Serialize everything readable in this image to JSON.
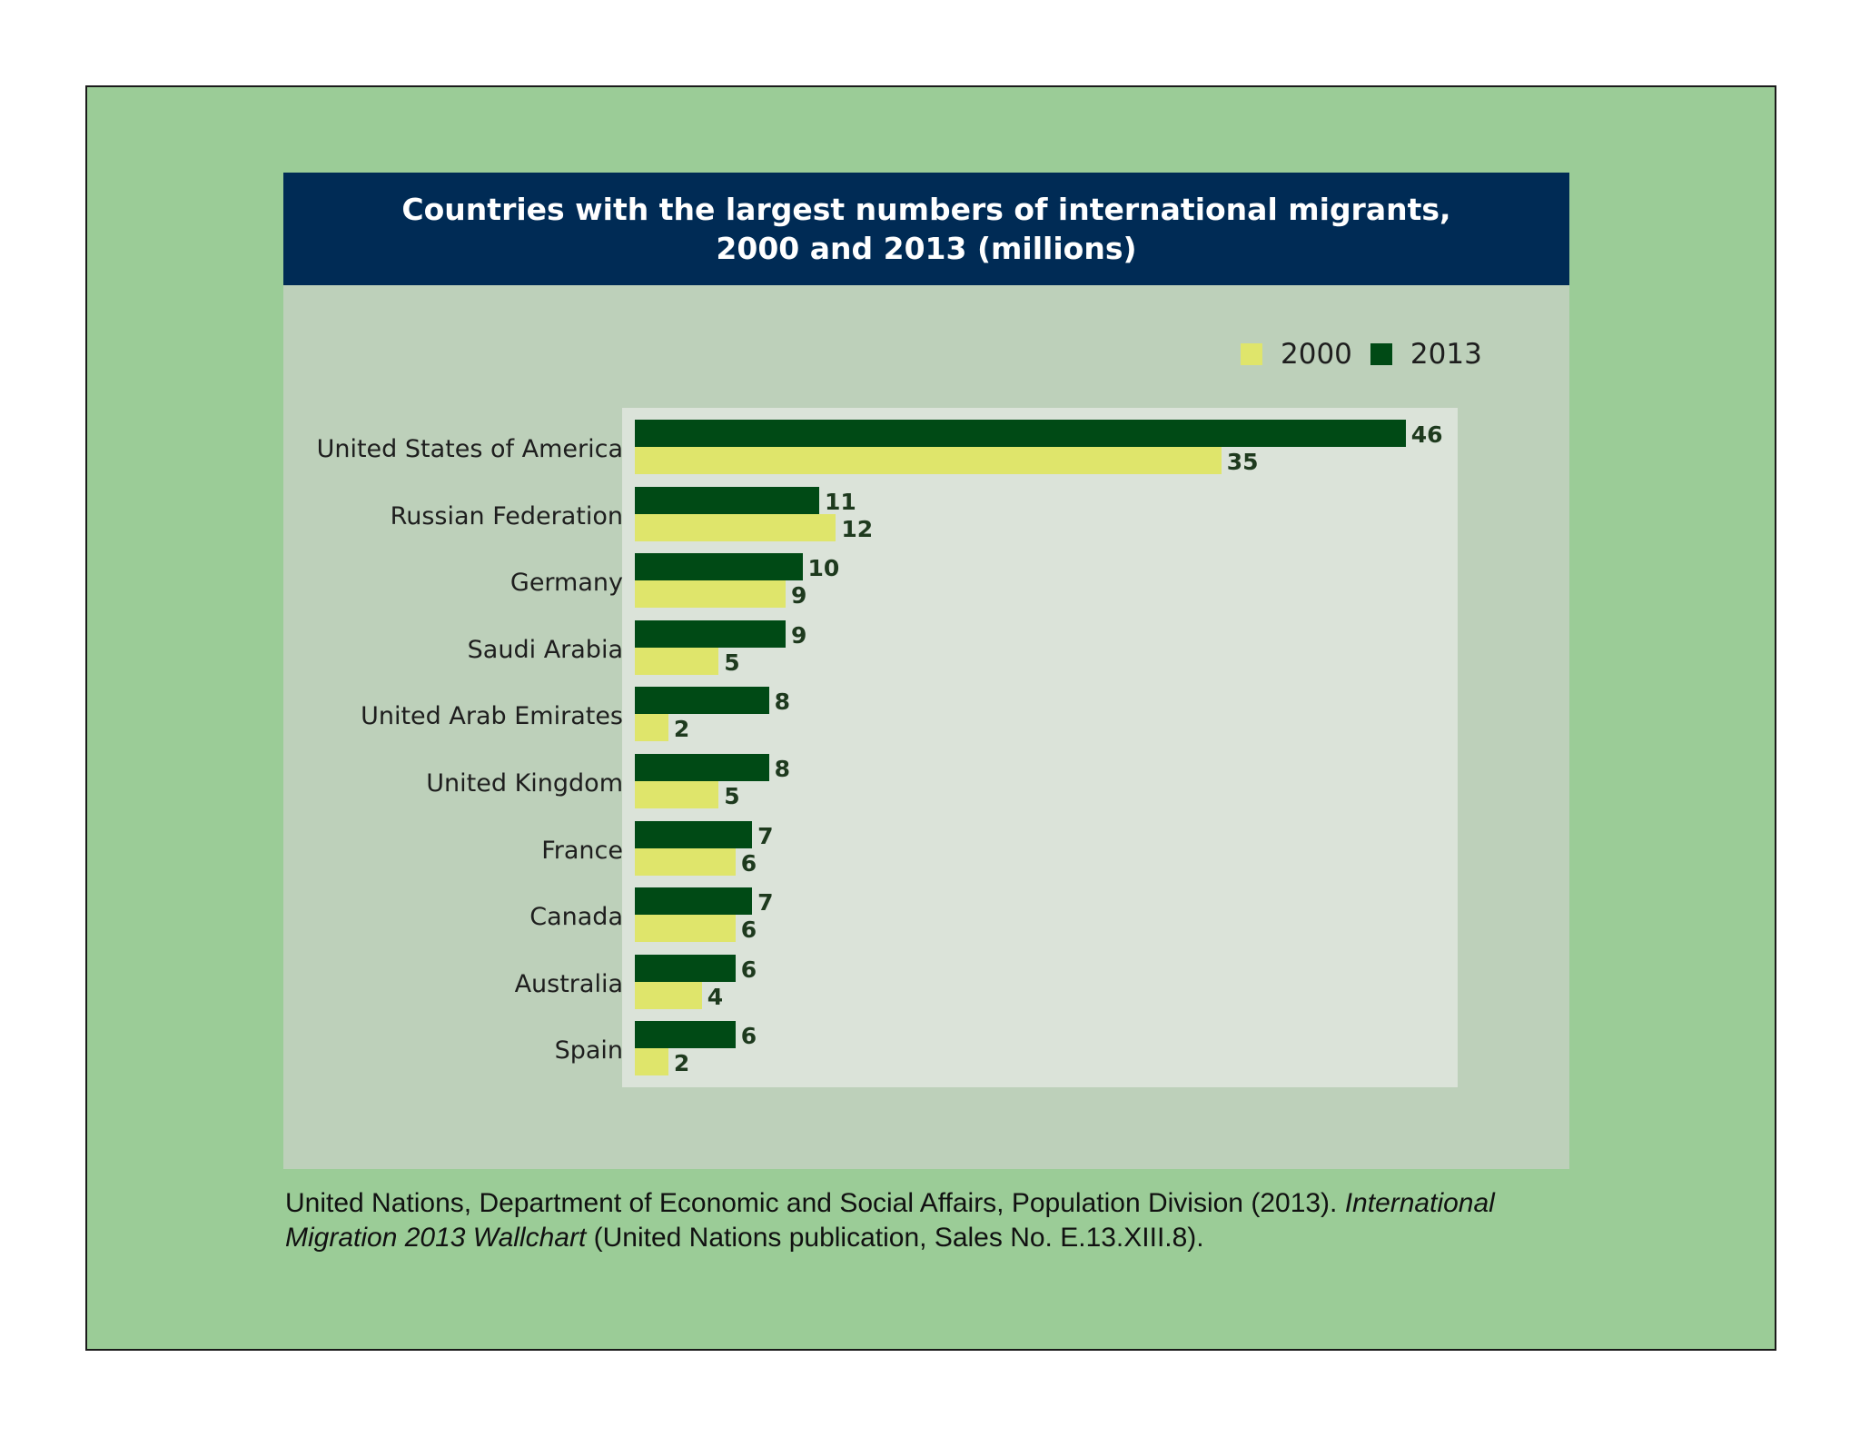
{
  "chart_data": {
    "type": "bar",
    "orientation": "horizontal",
    "title": "Countries with the largest numbers of international migrants,",
    "title_line2": "2000 and 2013 (millions)",
    "categories": [
      "United States of America",
      "Russian Federation",
      "Germany",
      "Saudi Arabia",
      "United Arab Emirates",
      "United Kingdom",
      "France",
      "Canada",
      "Australia",
      "Spain"
    ],
    "series": [
      {
        "name": "2013",
        "color": "#004a15",
        "values": [
          46,
          11,
          10,
          9,
          8,
          8,
          7,
          7,
          6,
          6
        ]
      },
      {
        "name": "2000",
        "color": "#dfe56b",
        "values": [
          35,
          12,
          9,
          5,
          2,
          5,
          6,
          6,
          4,
          2
        ]
      }
    ],
    "legend": [
      {
        "name": "2000",
        "color": "#dfe56b"
      },
      {
        "name": "2013",
        "color": "#004a15"
      }
    ],
    "xlim": [
      0,
      49
    ],
    "xlabel": "",
    "ylabel": "",
    "grid": false,
    "legend_position": "top-right"
  },
  "colors": {
    "frame_background": "#9bcc97",
    "panel_background": "#bdd0ba",
    "title_bar": "#002b55",
    "plot_background": "#dbe3d9"
  },
  "source": {
    "text_plain_1": "United Nations, Department of Economic and Social Affairs, Population Division (2013). ",
    "text_italic_1": "International",
    "text_italic_2": "Migration 2013 Wallchart",
    "text_plain_2": " (United Nations publication, Sales No. E.13.XIII.8)."
  }
}
